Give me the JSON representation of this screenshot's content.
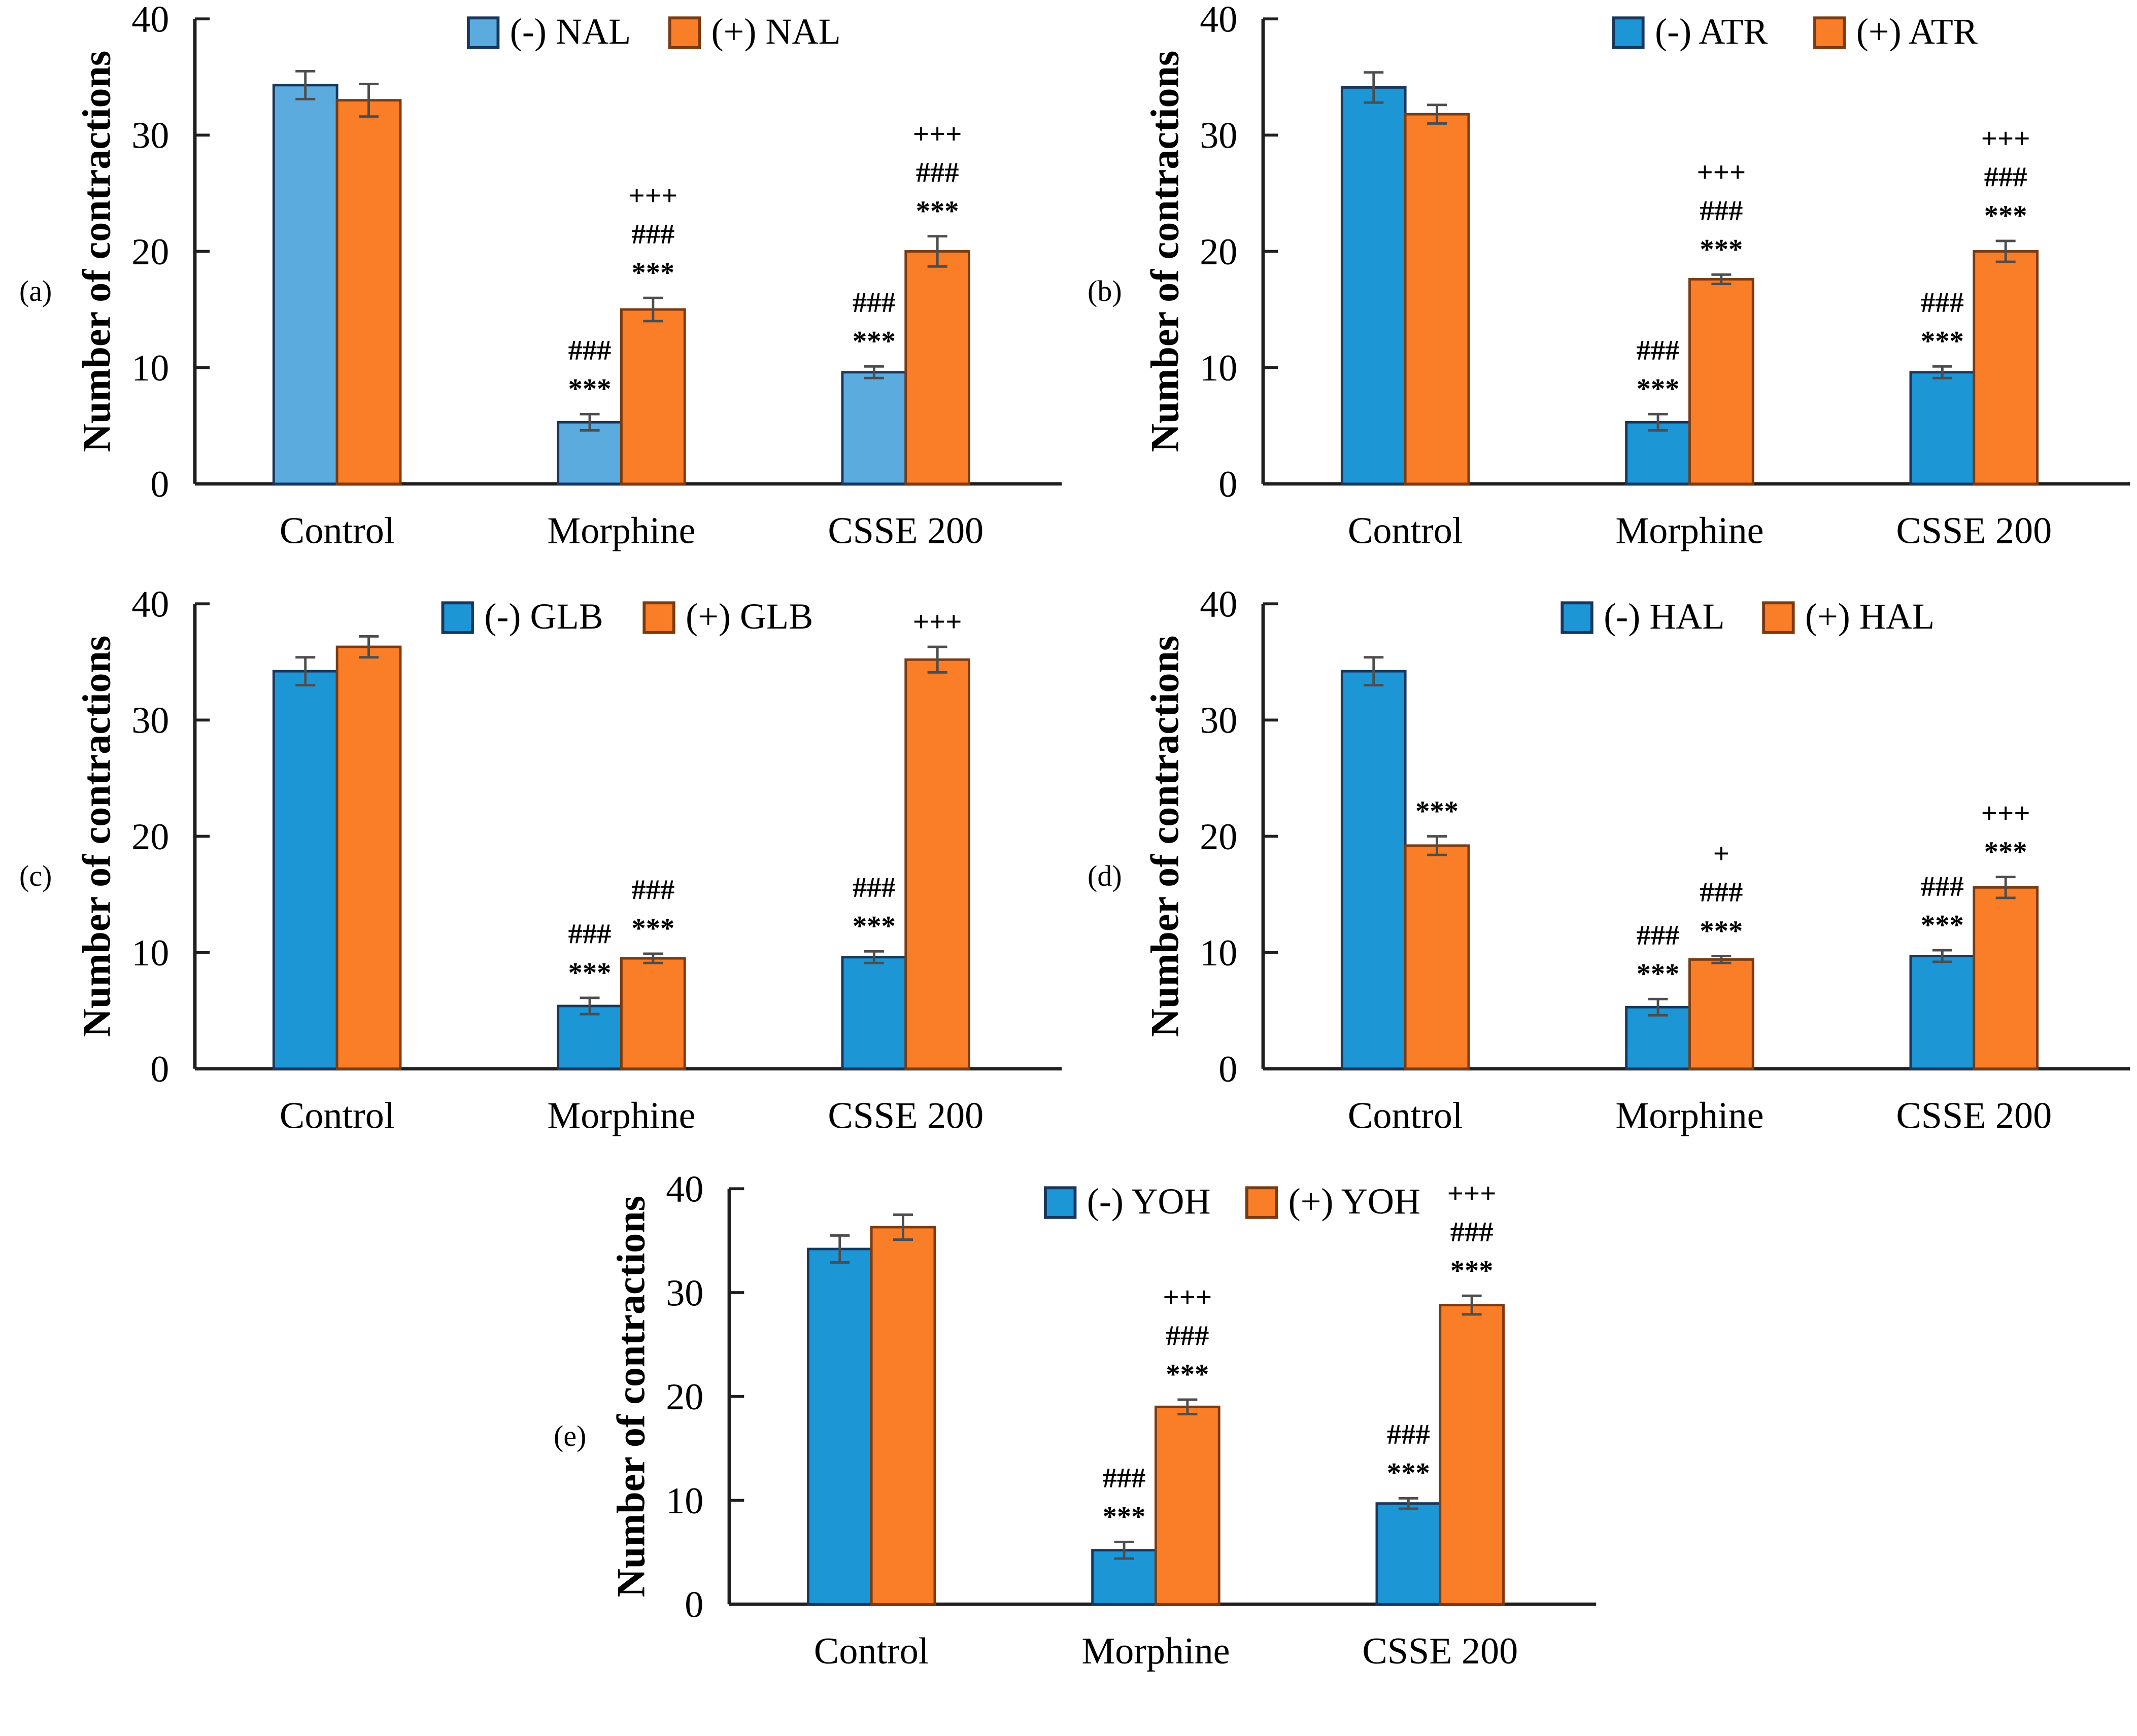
{
  "figure": {
    "background": "#ffffff",
    "description_visible_text_only": true
  },
  "styles": {
    "orange": "#F97E27",
    "blue_light": "#5BABDE",
    "blue": "#1D96D5",
    "blue_border": "#17375E",
    "orange_border": "#7C3A10",
    "axis_color": "#1F1F1F",
    "error_color": "#4D4D4D",
    "text_color": "#000000"
  },
  "chart_data": [
    {
      "type": "bar",
      "panel_label": "(a)",
      "ylabel": "Number of contractions",
      "ylim": [
        0,
        40
      ],
      "yticks": [
        0,
        10,
        20,
        30,
        40
      ],
      "categories": [
        "Control",
        "Morphine",
        "CSSE 200"
      ],
      "legend_position": "top-center",
      "legend_center_frac": 0.53,
      "grid": false,
      "series": [
        {
          "name": "(-) NAL",
          "fill": "#5BABDE",
          "border": "#17375E",
          "values": [
            34.3,
            5.3,
            9.6
          ],
          "errors": [
            1.2,
            0.7,
            0.5
          ],
          "annotations": [
            [],
            [
              "###",
              "***"
            ],
            [
              "###",
              "***"
            ]
          ]
        },
        {
          "name": "(+) NAL",
          "fill": "#F97E27",
          "border": "#7C3A10",
          "values": [
            33.0,
            15.0,
            20.0
          ],
          "errors": [
            1.4,
            1.0,
            1.3
          ],
          "annotations": [
            [],
            [
              "+++",
              "###",
              "***"
            ],
            [
              "+++",
              "###",
              "***"
            ]
          ]
        }
      ]
    },
    {
      "type": "bar",
      "panel_label": "(b)",
      "ylabel": "Number of contractions",
      "ylim": [
        0,
        40
      ],
      "yticks": [
        0,
        10,
        20,
        30,
        40
      ],
      "categories": [
        "Control",
        "Morphine",
        "CSSE 200"
      ],
      "legend_position": "top-right",
      "legend_center_frac": 0.62,
      "grid": false,
      "series": [
        {
          "name": "(-) ATR",
          "fill": "#1D96D5",
          "border": "#17375E",
          "values": [
            34.1,
            5.3,
            9.6
          ],
          "errors": [
            1.3,
            0.7,
            0.5
          ],
          "annotations": [
            [],
            [
              "###",
              "***"
            ],
            [
              "###",
              "***"
            ]
          ]
        },
        {
          "name": "(+) ATR",
          "fill": "#F97E27",
          "border": "#7C3A10",
          "values": [
            31.8,
            17.6,
            20.0
          ],
          "errors": [
            0.8,
            0.4,
            0.9
          ],
          "annotations": [
            [],
            [
              "+++",
              "###",
              "***"
            ],
            [
              "+++",
              "###",
              "***"
            ]
          ]
        }
      ]
    },
    {
      "type": "bar",
      "panel_label": "(c)",
      "ylabel": "Number of contractions",
      "ylim": [
        0,
        40
      ],
      "yticks": [
        0,
        10,
        20,
        30,
        40
      ],
      "categories": [
        "Control",
        "Morphine",
        "CSSE 200"
      ],
      "legend_position": "top-center",
      "legend_center_frac": 0.5,
      "grid": false,
      "series": [
        {
          "name": "(-) GLB",
          "fill": "#1D96D5",
          "border": "#17375E",
          "values": [
            34.2,
            5.4,
            9.6
          ],
          "errors": [
            1.2,
            0.7,
            0.5
          ],
          "annotations": [
            [],
            [
              "###",
              "***"
            ],
            [
              "###",
              "***"
            ]
          ]
        },
        {
          "name": "(+) GLB",
          "fill": "#F97E27",
          "border": "#7C3A10",
          "values": [
            36.3,
            9.5,
            35.2
          ],
          "errors": [
            0.9,
            0.4,
            1.1
          ],
          "annotations": [
            [],
            [
              "###",
              "***"
            ],
            [
              "+++"
            ]
          ]
        }
      ]
    },
    {
      "type": "bar",
      "panel_label": "(d)",
      "ylabel": "Number of contractions",
      "ylim": [
        0,
        40
      ],
      "yticks": [
        0,
        10,
        20,
        30,
        40
      ],
      "categories": [
        "Control",
        "Morphine",
        "CSSE 200"
      ],
      "legend_position": "top-center",
      "legend_center_frac": 0.56,
      "grid": false,
      "series": [
        {
          "name": "(-) HAL",
          "fill": "#1D96D5",
          "border": "#17375E",
          "values": [
            34.2,
            5.3,
            9.7
          ],
          "errors": [
            1.2,
            0.7,
            0.5
          ],
          "annotations": [
            [],
            [
              "###",
              "***"
            ],
            [
              "###",
              "***"
            ]
          ]
        },
        {
          "name": "(+) HAL",
          "fill": "#F97E27",
          "border": "#7C3A10",
          "values": [
            19.2,
            9.4,
            15.6
          ],
          "errors": [
            0.8,
            0.3,
            0.9
          ],
          "annotations": [
            [
              "***"
            ],
            [
              "+",
              "###",
              "***"
            ],
            [
              "+++",
              "***"
            ]
          ]
        }
      ]
    },
    {
      "type": "bar",
      "panel_label": "(e)",
      "ylabel": "Number of contractions",
      "ylim": [
        0,
        40
      ],
      "yticks": [
        0,
        10,
        20,
        30,
        40
      ],
      "categories": [
        "Control",
        "Morphine",
        "CSSE 200"
      ],
      "legend_position": "top-center",
      "legend_center_frac": 0.58,
      "grid": false,
      "series": [
        {
          "name": "(-) YOH",
          "fill": "#1D96D5",
          "border": "#17375E",
          "values": [
            34.2,
            5.2,
            9.7
          ],
          "errors": [
            1.3,
            0.8,
            0.5
          ],
          "annotations": [
            [],
            [
              "###",
              "***"
            ],
            [
              "###",
              "***"
            ]
          ]
        },
        {
          "name": "(+) YOH",
          "fill": "#F97E27",
          "border": "#7C3A10",
          "values": [
            36.3,
            19.0,
            28.8
          ],
          "errors": [
            1.2,
            0.7,
            0.9
          ],
          "annotations": [
            [],
            [
              "+++",
              "###",
              "***"
            ],
            [
              "+++",
              "###",
              "***"
            ]
          ]
        }
      ]
    }
  ]
}
